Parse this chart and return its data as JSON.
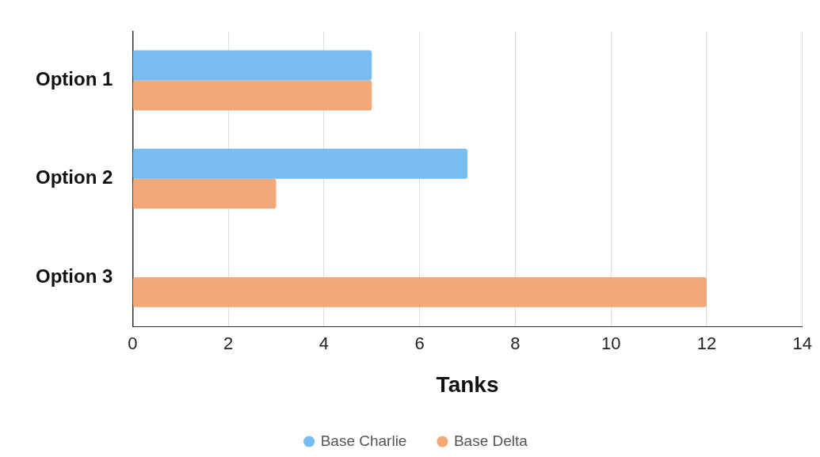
{
  "chart_data": {
    "type": "bar",
    "orientation": "horizontal",
    "xlabel": "Tanks",
    "categories": [
      "Option 1",
      "Option 2",
      "Option 3"
    ],
    "series": [
      {
        "name": "Base Charlie",
        "color": "#77bdf2",
        "values": [
          5,
          7,
          0
        ]
      },
      {
        "name": "Base Delta",
        "color": "#f2a977",
        "values": [
          5,
          3,
          12
        ]
      }
    ],
    "xlim": [
      0,
      14
    ],
    "xticks": [
      0,
      2,
      4,
      6,
      8,
      10,
      12,
      14
    ],
    "grid": "x",
    "legend": "bottom"
  }
}
